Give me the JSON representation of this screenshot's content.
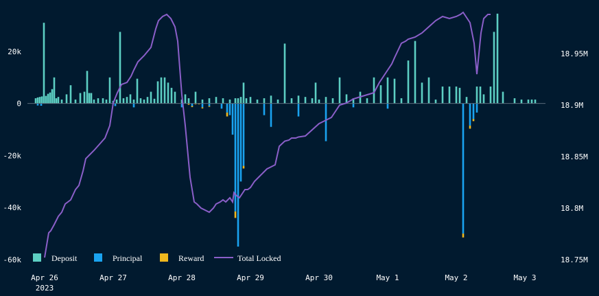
{
  "colors": {
    "background": "#011a2f",
    "deposit": "#5dcfc3",
    "principal": "#1aa3f0",
    "reward": "#f0b81e",
    "total_locked": "#8b5fc9",
    "zero_line": "#5a6b7a"
  },
  "chart_data": {
    "type": "bar",
    "title": "",
    "xlabel": "",
    "ylabel": "",
    "x_ticks": [
      "Apr 26",
      "Apr 27",
      "Apr 28",
      "Apr 29",
      "Apr 30",
      "May 1",
      "May 2",
      "May 3"
    ],
    "x_year_label": "2023",
    "y_left_ticks": [
      "20k",
      "0",
      "-20k",
      "-40k",
      "-60k"
    ],
    "y_left_values": [
      20000,
      0,
      -20000,
      -40000,
      -60000
    ],
    "y_left_range": [
      -60000,
      35000
    ],
    "y_right_ticks": [
      "18.95M",
      "18.9M",
      "18.85M",
      "18.8M",
      "18.75M"
    ],
    "y_right_values": [
      18950000,
      18900000,
      18850000,
      18800000,
      18750000
    ],
    "y_right_range": [
      18750000,
      18990000
    ],
    "x_range": [
      -0.25,
      7.3
    ],
    "legend": [
      {
        "name": "Deposit",
        "kind": "box",
        "color": "#5dcfc3"
      },
      {
        "name": "Principal",
        "kind": "box",
        "color": "#1aa3f0"
      },
      {
        "name": "Reward",
        "kind": "box",
        "color": "#f0b81e"
      },
      {
        "name": "Total Locked",
        "kind": "line",
        "color": "#8b5fc9"
      }
    ],
    "legend_position": "bottom-left",
    "grid": false,
    "series": [
      {
        "name": "Deposit",
        "type": "bar",
        "x": [
          -0.13,
          -0.1,
          -0.07,
          -0.04,
          -0.01,
          0.02,
          0.05,
          0.08,
          0.11,
          0.14,
          0.17,
          0.2,
          0.25,
          0.32,
          0.38,
          0.45,
          0.52,
          0.58,
          0.62,
          0.65,
          0.68,
          0.72,
          0.78,
          0.85,
          0.9,
          0.95,
          1.0,
          1.05,
          1.1,
          1.15,
          1.2,
          1.25,
          1.3,
          1.35,
          1.4,
          1.45,
          1.5,
          1.55,
          1.6,
          1.65,
          1.7,
          1.75,
          1.8,
          1.85,
          1.9,
          2.0,
          2.05,
          2.1,
          2.2,
          2.3,
          2.4,
          2.5,
          2.6,
          2.7,
          2.78,
          2.82,
          2.86,
          2.9,
          2.94,
          3.0,
          3.1,
          3.2,
          3.3,
          3.4,
          3.5,
          3.6,
          3.7,
          3.8,
          3.9,
          3.95,
          4.0,
          4.1,
          4.2,
          4.3,
          4.4,
          4.5,
          4.6,
          4.7,
          4.8,
          4.9,
          5.0,
          5.1,
          5.2,
          5.3,
          5.4,
          5.5,
          5.6,
          5.7,
          5.8,
          5.9,
          6.0,
          6.05,
          6.15,
          6.3,
          6.35,
          6.4,
          6.5,
          6.55,
          6.6,
          6.68,
          6.85,
          6.95,
          7.05,
          7.1,
          7.15
        ],
        "values": [
          2000,
          2300,
          2500,
          2700,
          31000,
          2900,
          3700,
          4200,
          5500,
          10000,
          2000,
          2500,
          1500,
          3500,
          7000,
          1500,
          4000,
          4500,
          12500,
          4000,
          4000,
          1500,
          2000,
          2000,
          1500,
          10000,
          1000,
          1500,
          27500,
          2000,
          2500,
          3500,
          1500,
          9500,
          2000,
          1500,
          2500,
          4500,
          1800,
          8500,
          10000,
          10000,
          8000,
          6000,
          4500,
          1500,
          3500,
          2000,
          4500,
          1500,
          2000,
          2500,
          2000,
          1500,
          2000,
          2000,
          2500,
          8000,
          2000,
          2500,
          1500,
          2000,
          3000,
          1500,
          23000,
          2000,
          3000,
          2500,
          2000,
          8000,
          1500,
          2500,
          2000,
          10000,
          3500,
          2000,
          4500,
          2000,
          10000,
          7000,
          10000,
          9500,
          2000,
          16500,
          24000,
          8000,
          10000,
          1500,
          6500,
          6500,
          6500,
          6000,
          2500,
          6500,
          6500,
          3500,
          6500,
          27500,
          34500,
          4500,
          2000,
          1500,
          1500,
          1500,
          1500
        ],
        "unit": "left"
      },
      {
        "name": "Principal",
        "type": "bar",
        "x": [
          -0.1,
          -0.05,
          1.03,
          1.3,
          2.0,
          2.15,
          2.3,
          2.4,
          2.58,
          2.66,
          2.7,
          2.74,
          2.78,
          2.82,
          2.86,
          2.9,
          3.2,
          3.3,
          3.7,
          4.1,
          4.5,
          5.0,
          6.1,
          6.2,
          6.25,
          6.3
        ],
        "values": [
          -800,
          -900,
          -1000,
          -1500,
          -1500,
          -1000,
          -1500,
          -1000,
          -2000,
          -3500,
          -4500,
          -12000,
          -41500,
          -55000,
          -30000,
          -24000,
          -4500,
          -9000,
          -5000,
          -14500,
          -1500,
          -2000,
          -50000,
          -8500,
          -6000,
          -3500
        ],
        "unit": "left"
      },
      {
        "name": "Reward",
        "type": "bar",
        "x": [
          2.1,
          2.15,
          2.2,
          2.25,
          2.3,
          2.4,
          2.66,
          2.78,
          2.9,
          6.1,
          6.2,
          6.25
        ],
        "values": [
          -500,
          -400,
          -300,
          -300,
          -400,
          -300,
          -1500,
          -2500,
          -1000,
          -1500,
          -1200,
          -800
        ],
        "unit": "left"
      },
      {
        "name": "Total Locked",
        "type": "line",
        "x": [
          0,
          0.06,
          0.09,
          0.14,
          0.2,
          0.25,
          0.3,
          0.38,
          0.45,
          0.5,
          0.56,
          0.6,
          0.66,
          0.72,
          0.8,
          0.88,
          0.95,
          1.0,
          1.06,
          1.12,
          1.2,
          1.26,
          1.3,
          1.36,
          1.45,
          1.55,
          1.62,
          1.66,
          1.72,
          1.78,
          1.84,
          1.9,
          1.94,
          2.0,
          2.05,
          2.12,
          2.18,
          2.22,
          2.28,
          2.34,
          2.4,
          2.46,
          2.5,
          2.56,
          2.6,
          2.64,
          2.7,
          2.74,
          2.76,
          2.8,
          2.84,
          2.88,
          2.92,
          2.96,
          3.0,
          3.06,
          3.12,
          3.18,
          3.24,
          3.3,
          3.36,
          3.42,
          3.5,
          3.56,
          3.6,
          3.66,
          3.7,
          3.8,
          3.9,
          4.0,
          4.06,
          4.12,
          4.18,
          4.22,
          4.3,
          4.4,
          4.5,
          4.6,
          4.7,
          4.8,
          4.88,
          4.94,
          5.0,
          5.06,
          5.1,
          5.2,
          5.26,
          5.3,
          5.4,
          5.5,
          5.6,
          5.7,
          5.8,
          5.9,
          6.0,
          6.06,
          6.1,
          6.16,
          6.2,
          6.26,
          6.3,
          6.36,
          6.4,
          6.46,
          6.5
        ],
        "values": [
          18752000,
          18776000,
          18778000,
          18784000,
          18792000,
          18796000,
          18804000,
          18808000,
          18818000,
          18822000,
          18836000,
          18848000,
          18852000,
          18856000,
          18862000,
          18868000,
          18880000,
          18902000,
          18912000,
          18920000,
          18922000,
          18928000,
          18934000,
          18942000,
          18948000,
          18956000,
          18974000,
          18982000,
          18986000,
          18988000,
          18984000,
          18976000,
          18962000,
          18910000,
          18880000,
          18830000,
          18806000,
          18804000,
          18800000,
          18798000,
          18796000,
          18800000,
          18804000,
          18806000,
          18808000,
          18806000,
          18810000,
          18806000,
          18815000,
          18812000,
          18810000,
          18814000,
          18818000,
          18818000,
          18820000,
          18826000,
          18830000,
          18834000,
          18838000,
          18840000,
          18842000,
          18860000,
          18865000,
          18866000,
          18868000,
          18868000,
          18869000,
          18870000,
          18876000,
          18882000,
          18884000,
          18886000,
          18888000,
          18892000,
          18900000,
          18902000,
          18906000,
          18908000,
          18910000,
          18912000,
          18922000,
          18928000,
          18934000,
          18940000,
          18946000,
          18960000,
          18962000,
          18964000,
          18966000,
          18970000,
          18976000,
          18982000,
          18986000,
          18984000,
          18986000,
          18988000,
          18990000,
          18984000,
          18980000,
          18960000,
          18930000,
          18970000,
          18984000,
          18988000,
          18988000
        ],
        "unit": "right"
      }
    ]
  }
}
